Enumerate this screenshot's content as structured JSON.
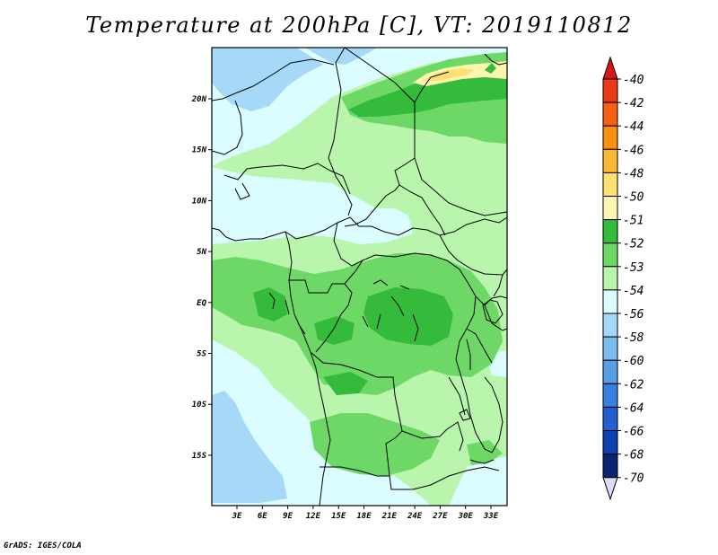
{
  "title": "Temperature at 200hPa [C], VT: 2019110812",
  "footer": "GrADS: IGES/COLA",
  "map": {
    "lon_ticks": [
      "3E",
      "6E",
      "9E",
      "12E",
      "15E",
      "18E",
      "21E",
      "24E",
      "27E",
      "30E",
      "33E"
    ],
    "lat_ticks": [
      "20N",
      "15N",
      "10N",
      "5N",
      "EQ",
      "5S",
      "10S",
      "15S"
    ]
  },
  "colorbar": {
    "labels": [
      "-40",
      "-42",
      "-44",
      "-46",
      "-48",
      "-50",
      "-51",
      "-52",
      "-53",
      "-54",
      "-56",
      "-58",
      "-60",
      "-62",
      "-64",
      "-66",
      "-68",
      "-70"
    ],
    "colors": {
      "band_neg40_42": "#e83a14",
      "band_neg42_44": "#f86018",
      "band_neg44_46": "#f9900f",
      "band_neg46_48": "#fbb933",
      "band_neg48_50": "#fce173",
      "band_neg50_51": "#fdf6b0",
      "band_neg51_52": "#35bb3b",
      "band_neg52_53": "#6ed867",
      "band_neg53_54": "#b9f5ad",
      "band_neg54_56": "#dcfdff",
      "band_neg56_58": "#a6d9f8",
      "band_neg58_60": "#7cbdf0",
      "band_neg60_62": "#5a9ee8",
      "band_neg62_64": "#3a7ee0",
      "band_neg64_66": "#245fd0",
      "band_neg66_68": "#1040b0",
      "band_neg68_70": "#0a2470",
      "over_arrow": "#d81818",
      "under_arrow": "#dcdcf6"
    }
  }
}
